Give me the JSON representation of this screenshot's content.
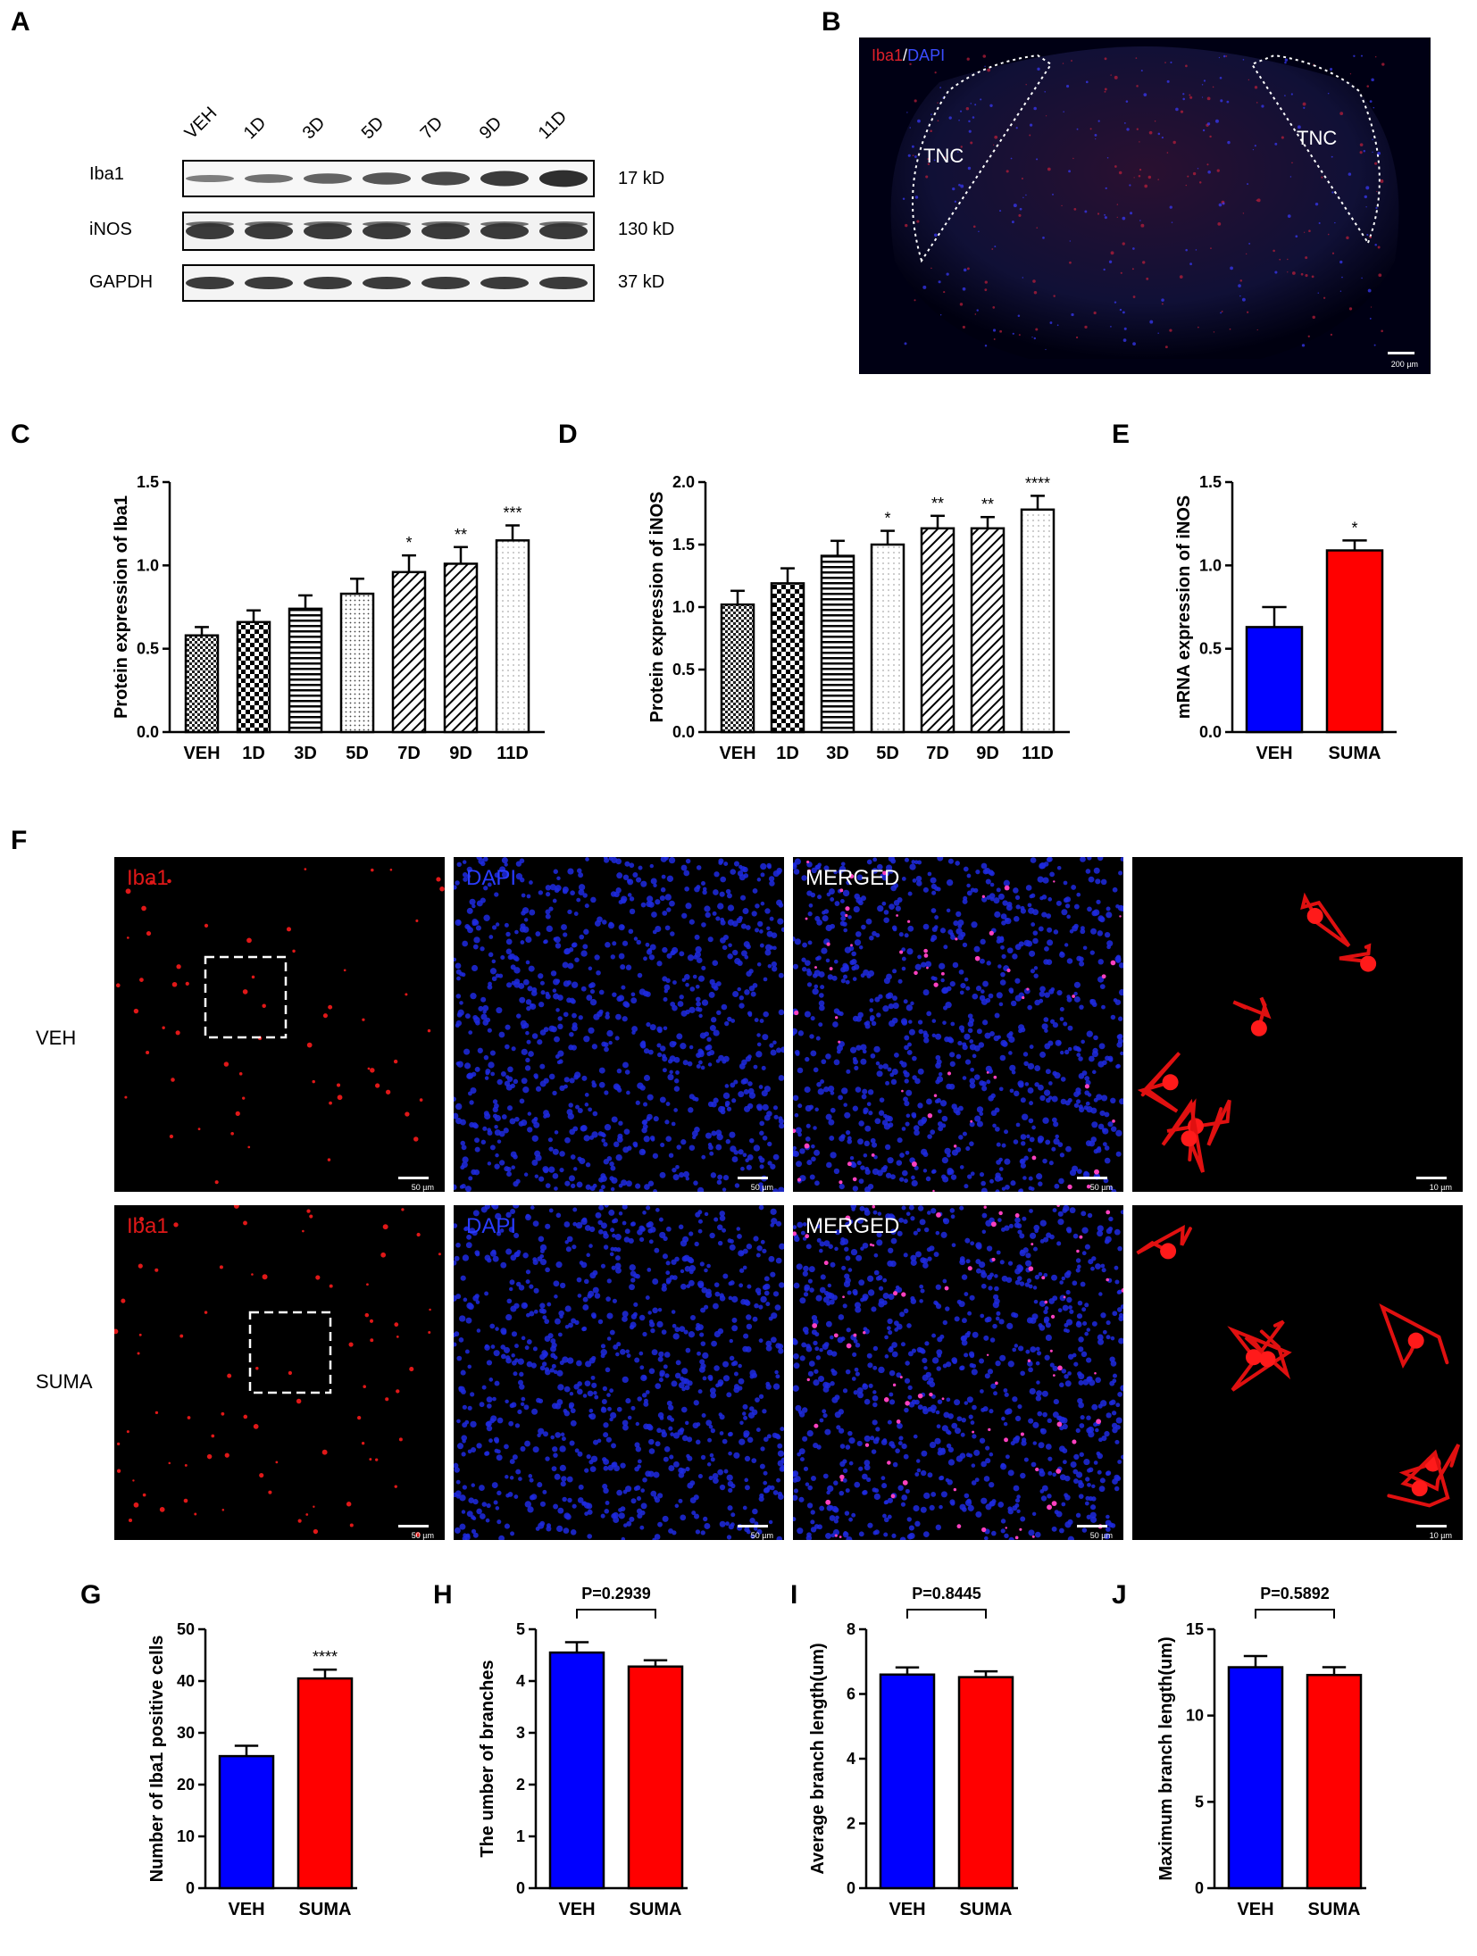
{
  "panel_letters": {
    "A": "A",
    "B": "B",
    "C": "C",
    "D": "D",
    "E": "E",
    "F": "F",
    "G": "G",
    "H": "H",
    "I": "I",
    "J": "J"
  },
  "colors": {
    "blue": "#0000ff",
    "red": "#ff0000",
    "black": "#000000"
  },
  "western_blot": {
    "lanes": [
      "VEH",
      "1D",
      "3D",
      "5D",
      "7D",
      "9D",
      "11D"
    ],
    "rows": [
      {
        "name": "Iba1",
        "size": "17 kD"
      },
      {
        "name": "iNOS",
        "size": "130 kD"
      },
      {
        "name": "GAPDH",
        "size": "37 kD"
      }
    ]
  },
  "panel_b": {
    "label_iba1": "Iba1",
    "label_sep": "/",
    "label_dapi": "DAPI",
    "region_left": "TNC",
    "region_right": "TNC",
    "scale": "200 µm"
  },
  "panel_f": {
    "rows": [
      "VEH",
      "SUMA"
    ],
    "columns": [
      "Iba1",
      "DAPI",
      "MERGED",
      ""
    ],
    "scale_50": "50 µm",
    "scale_10": "10 µm"
  },
  "chart_data": [
    {
      "id": "C",
      "type": "bar",
      "categories": [
        "VEH",
        "1D",
        "3D",
        "5D",
        "7D",
        "9D",
        "11D"
      ],
      "values": [
        0.58,
        0.66,
        0.74,
        0.83,
        0.96,
        1.01,
        1.15
      ],
      "errors": [
        0.05,
        0.07,
        0.08,
        0.09,
        0.1,
        0.1,
        0.09
      ],
      "significance": [
        "",
        "",
        "",
        "",
        "*",
        "**",
        "***"
      ],
      "ylabel": "Protein expression of Iba1",
      "ylim": [
        0,
        1.5
      ],
      "yticks": [
        "0.0",
        "0.5",
        "1.0",
        "1.5"
      ]
    },
    {
      "id": "D",
      "type": "bar",
      "categories": [
        "VEH",
        "1D",
        "3D",
        "5D",
        "7D",
        "9D",
        "11D"
      ],
      "values": [
        1.02,
        1.19,
        1.41,
        1.5,
        1.63,
        1.63,
        1.78
      ],
      "errors": [
        0.11,
        0.12,
        0.12,
        0.11,
        0.1,
        0.09,
        0.11
      ],
      "significance": [
        "",
        "",
        "",
        "*",
        "**",
        "**",
        "****"
      ],
      "ylabel": "Protein expression of iNOS",
      "ylim": [
        0,
        2.0
      ],
      "yticks": [
        "0.0",
        "0.5",
        "1.0",
        "1.5",
        "2.0"
      ]
    },
    {
      "id": "E",
      "type": "bar",
      "categories": [
        "VEH",
        "SUMA"
      ],
      "values": [
        0.63,
        1.09
      ],
      "errors": [
        0.12,
        0.06
      ],
      "significance": [
        "",
        "*"
      ],
      "ylabel": "mRNA expression of iNOS",
      "ylim": [
        0,
        1.5
      ],
      "yticks": [
        "0.0",
        "0.5",
        "1.0",
        "1.5"
      ]
    },
    {
      "id": "G",
      "type": "bar",
      "categories": [
        "VEH",
        "SUMA"
      ],
      "values": [
        25.5,
        40.5
      ],
      "errors": [
        2.0,
        1.7
      ],
      "significance": [
        "",
        "****"
      ],
      "pvalue": "",
      "ylabel": "Number of Iba1 positive cells",
      "ylim": [
        0,
        50
      ],
      "yticks": [
        "0",
        "10",
        "20",
        "30",
        "40",
        "50"
      ]
    },
    {
      "id": "H",
      "type": "bar",
      "categories": [
        "VEH",
        "SUMA"
      ],
      "values": [
        4.55,
        4.28
      ],
      "errors": [
        0.2,
        0.12
      ],
      "significance": [
        "",
        ""
      ],
      "pvalue": "P=0.2939",
      "ylabel": "The umber of branches",
      "ylim": [
        0,
        5
      ],
      "yticks": [
        "0",
        "1",
        "2",
        "3",
        "4",
        "5"
      ]
    },
    {
      "id": "I",
      "type": "bar",
      "categories": [
        "VEH",
        "SUMA"
      ],
      "values": [
        6.6,
        6.52
      ],
      "errors": [
        0.22,
        0.18
      ],
      "significance": [
        "",
        ""
      ],
      "pvalue": "P=0.8445",
      "ylabel": "Average branch length(um)",
      "ylim": [
        0,
        8
      ],
      "yticks": [
        "0",
        "2",
        "4",
        "6",
        "8"
      ]
    },
    {
      "id": "J",
      "type": "bar",
      "categories": [
        "VEH",
        "SUMA"
      ],
      "values": [
        12.8,
        12.35
      ],
      "errors": [
        0.65,
        0.45
      ],
      "significance": [
        "",
        ""
      ],
      "pvalue": "P=0.5892",
      "ylabel": "Maximum branch length(um)",
      "ylim": [
        0,
        15
      ],
      "yticks": [
        "0",
        "5",
        "10",
        "15"
      ]
    }
  ]
}
